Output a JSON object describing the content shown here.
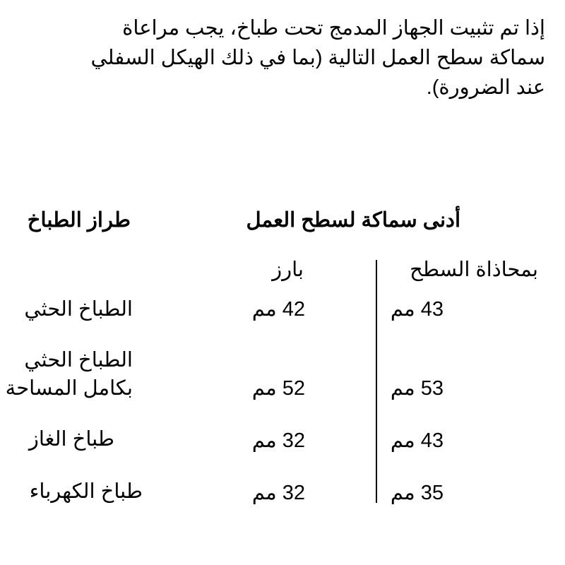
{
  "intro": {
    "lines": [
      "إذا تم تثبيت الجهاز المدمج تحت طباخ، يجب مراعاة",
      "سماكة سطح العمل التالية (بما في ذلك الهيكل السفلي",
      "عند الضرورة)."
    ]
  },
  "table": {
    "header_model": "طراز الطباخ",
    "header_thickness": "أدنى سماكة لسطح العمل",
    "sub_flush": "بمحاذاة السطح",
    "sub_raised": "بارز",
    "rows": [
      {
        "model": [
          "الطباخ الحثي"
        ],
        "raised": "42 مم",
        "flush": "43 مم"
      },
      {
        "model": [
          "الطباخ الحثي",
          "بكامل المساحة"
        ],
        "raised": "52 مم",
        "flush": "53 مم"
      },
      {
        "model": [
          "طباخ الغاز"
        ],
        "raised": "32 مم",
        "flush": "43 مم"
      },
      {
        "model": [
          "طباخ الكهرباء"
        ],
        "raised": "32 مم",
        "flush": "35 مم"
      }
    ]
  }
}
